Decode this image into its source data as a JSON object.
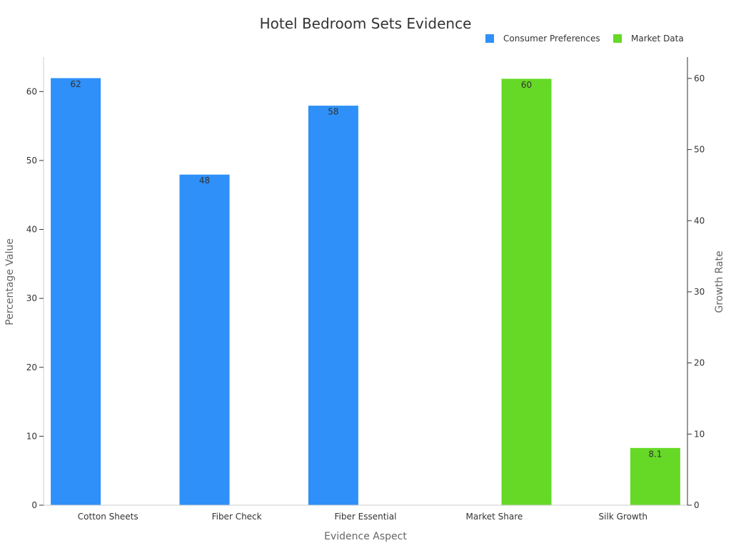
{
  "chart_data": {
    "type": "bar",
    "title": "Hotel Bedroom Sets Evidence",
    "xlabel": "Evidence Aspect",
    "ylabel": "Percentage Value",
    "y2label": "Growth Rate",
    "categories": [
      "Cotton Sheets",
      "Fiber Check",
      "Fiber Essential",
      "Market Share",
      "Silk Growth"
    ],
    "series": [
      {
        "name": "Consumer Preferences",
        "color": "#2e90f8",
        "axis": "left",
        "values": [
          62,
          48,
          58,
          null,
          null
        ],
        "labels": [
          "62",
          "48",
          "58",
          "",
          ""
        ]
      },
      {
        "name": "Market Data",
        "color": "#66d926",
        "axis": "right",
        "values": [
          null,
          null,
          null,
          60,
          8.1
        ],
        "labels": [
          "",
          "",
          "",
          "60",
          "8.1"
        ]
      }
    ],
    "ylim": [
      0,
      65
    ],
    "y2lim": [
      0,
      63
    ],
    "yticks": [
      0,
      10,
      20,
      30,
      40,
      50,
      60
    ],
    "y2ticks": [
      0,
      10,
      20,
      30,
      40,
      50,
      60
    ],
    "legend_position": "top-right",
    "grid": false
  }
}
